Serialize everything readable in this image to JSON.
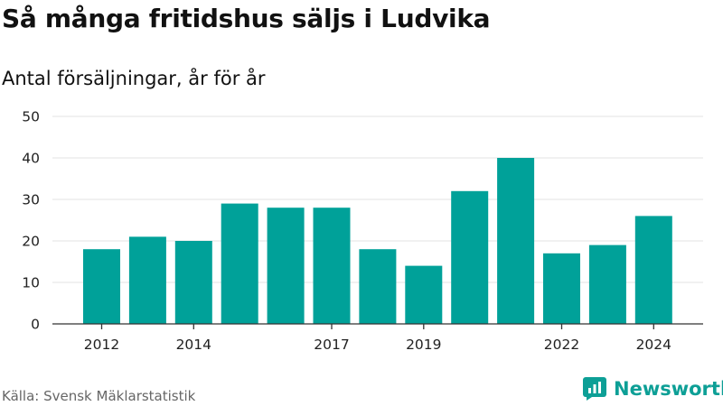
{
  "title": "Så många fritidshus säljs i Ludvika",
  "subtitle": "Antal försäljningar, år för år",
  "source": "Källa: Svensk Mäklarstatistik",
  "brand": {
    "name": "Newsworthy",
    "icon": "bar-chart-logo-icon",
    "color": "#0d9f96"
  },
  "chart_data": {
    "type": "bar",
    "categories": [
      "2012",
      "2013",
      "2014",
      "2015",
      "2016",
      "2017",
      "2018",
      "2019",
      "2020",
      "2021",
      "2022",
      "2023",
      "2024"
    ],
    "values": [
      18,
      21,
      20,
      29,
      28,
      28,
      18,
      14,
      32,
      40,
      17,
      19,
      26
    ],
    "x_tick_labels": [
      "2012",
      "2014",
      "2017",
      "2019",
      "2022",
      "2024"
    ],
    "y_ticks": [
      0,
      10,
      20,
      30,
      40,
      50
    ],
    "ylim": [
      0,
      50
    ],
    "bar_color": "#00a199",
    "grid": true,
    "legend": "none"
  }
}
